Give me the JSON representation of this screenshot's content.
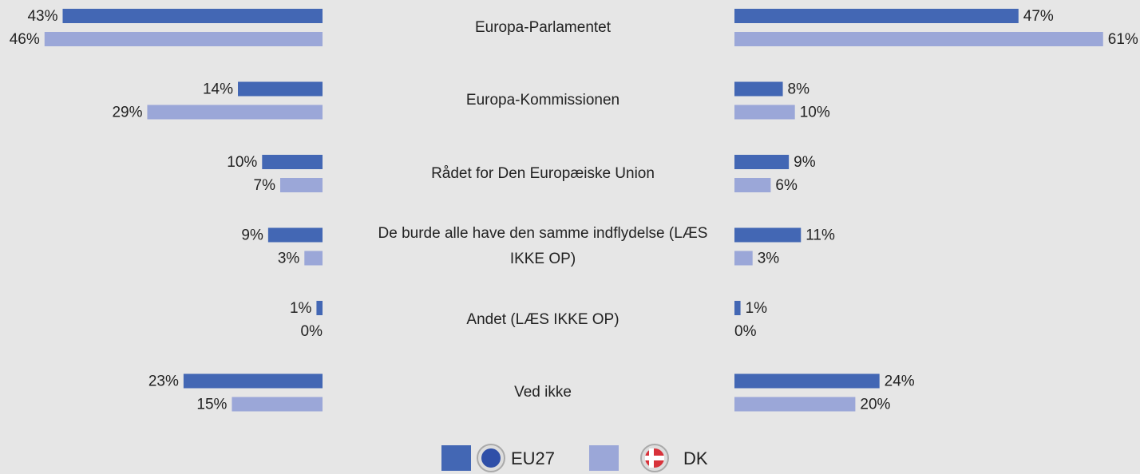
{
  "chart_data": [
    {
      "type": "bar",
      "orientation": "horizontal",
      "direction": "left",
      "categories": [
        "Europa-Parlamentet",
        "Europa-Kommissionen",
        "Rådet for Den Europæiske Union",
        "De burde alle have den samme indflydelse (LÆS IKKE OP)",
        "Andet (LÆS IKKE OP)",
        "Ved ikke"
      ],
      "series": [
        {
          "name": "EU27",
          "color": "#4367b4",
          "values": [
            43,
            14,
            10,
            9,
            1,
            23
          ],
          "value_labels": [
            "43%",
            "14%",
            "10%",
            "9%",
            "1%",
            "23%"
          ]
        },
        {
          "name": "DK",
          "color": "#9ba7d8",
          "values": [
            46,
            29,
            7,
            3,
            0,
            15
          ],
          "value_labels": [
            "46%",
            "29%",
            "7%",
            "3%",
            "0%",
            "15%"
          ]
        }
      ]
    },
    {
      "type": "bar",
      "orientation": "horizontal",
      "direction": "right",
      "series": [
        {
          "color": "#4367b4",
          "values": [
            47,
            8,
            9,
            11,
            1,
            24
          ],
          "value_labels": [
            "47%",
            "8%",
            "9%",
            "11%",
            "1%",
            "24%"
          ]
        },
        {
          "color": "#9ba7d8",
          "values": [
            61,
            10,
            6,
            3,
            0,
            20
          ],
          "value_labels": [
            "61%",
            "10%",
            "6%",
            "3%",
            "0%",
            "20%"
          ]
        }
      ]
    }
  ]
}
